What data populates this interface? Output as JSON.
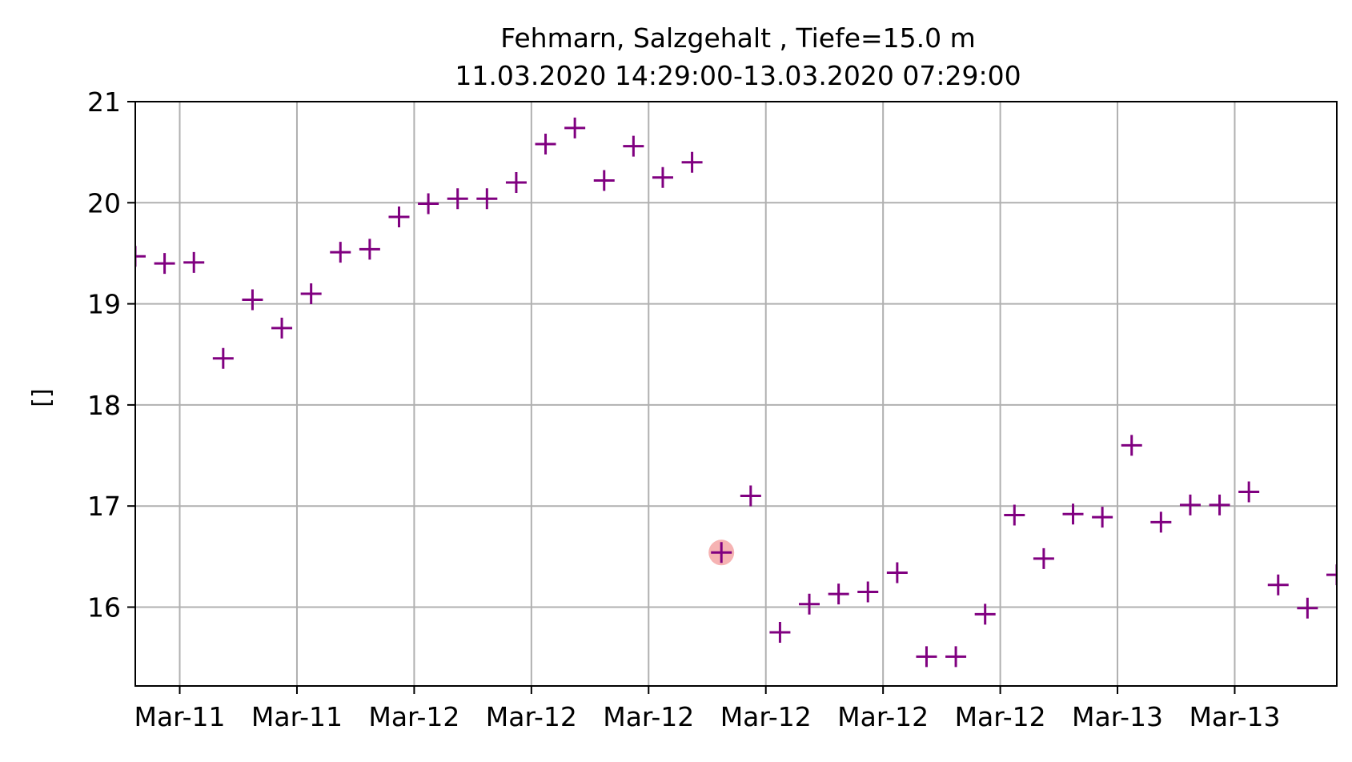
{
  "chart_data": {
    "type": "scatter",
    "title": "Fehmarn, Salzgehalt , Tiefe=15.0 m",
    "subtitle": "11.03.2020 14:29:00-13.03.2020 07:29:00",
    "xlabel": "",
    "ylabel": "[]",
    "ylim": [
      15.22,
      21.0
    ],
    "yticks": [
      16,
      17,
      18,
      19,
      20,
      21
    ],
    "xlim": [
      "2020-03-11 14:29",
      "2020-03-13 07:29"
    ],
    "xticks": [
      "2020-03-11 16:00",
      "2020-03-11 20:00",
      "2020-03-12 00:00",
      "2020-03-12 04:00",
      "2020-03-12 08:00",
      "2020-03-12 12:00",
      "2020-03-12 16:00",
      "2020-03-12 20:00",
      "2020-03-13 00:00",
      "2020-03-13 04:00"
    ],
    "xticklabels": [
      "Mar-11",
      "Mar-11",
      "Mar-12",
      "Mar-12",
      "Mar-12",
      "Mar-12",
      "Mar-12",
      "Mar-12",
      "Mar-13",
      "Mar-13"
    ],
    "grid": true,
    "series": [
      {
        "marker": "+",
        "color": "#800080",
        "x": [
          "2020-03-11 14:29",
          "2020-03-11 15:29",
          "2020-03-11 16:29",
          "2020-03-11 17:29",
          "2020-03-11 18:29",
          "2020-03-11 19:29",
          "2020-03-11 20:29",
          "2020-03-11 21:29",
          "2020-03-11 22:29",
          "2020-03-11 23:29",
          "2020-03-12 00:29",
          "2020-03-12 01:29",
          "2020-03-12 02:29",
          "2020-03-12 03:29",
          "2020-03-12 04:29",
          "2020-03-12 05:29",
          "2020-03-12 06:29",
          "2020-03-12 07:29",
          "2020-03-12 08:29",
          "2020-03-12 09:29",
          "2020-03-12 10:29",
          "2020-03-12 11:29",
          "2020-03-12 12:29",
          "2020-03-12 13:29",
          "2020-03-12 14:29",
          "2020-03-12 15:29",
          "2020-03-12 16:29",
          "2020-03-12 17:29",
          "2020-03-12 18:29",
          "2020-03-12 19:29",
          "2020-03-12 20:29",
          "2020-03-12 21:29",
          "2020-03-12 22:29",
          "2020-03-12 23:29",
          "2020-03-13 00:29",
          "2020-03-13 01:29",
          "2020-03-13 02:29",
          "2020-03-13 03:29",
          "2020-03-13 04:29",
          "2020-03-13 05:29",
          "2020-03-13 06:29",
          "2020-03-13 07:29"
        ],
        "y": [
          19.47,
          19.4,
          19.41,
          18.46,
          19.04,
          18.76,
          19.1,
          19.51,
          19.54,
          19.86,
          19.99,
          20.04,
          20.04,
          20.2,
          20.58,
          20.74,
          20.22,
          20.56,
          20.25,
          20.4,
          16.54,
          17.1,
          15.75,
          16.03,
          16.13,
          16.15,
          16.34,
          15.51,
          15.51,
          15.93,
          16.91,
          16.48,
          16.92,
          16.89,
          17.6,
          16.84,
          17.01,
          17.01,
          17.14,
          16.22,
          15.99,
          16.32
        ]
      }
    ],
    "highlight": {
      "x": "2020-03-12 10:29",
      "y": 16.54,
      "color": "#f4a6a6"
    }
  }
}
